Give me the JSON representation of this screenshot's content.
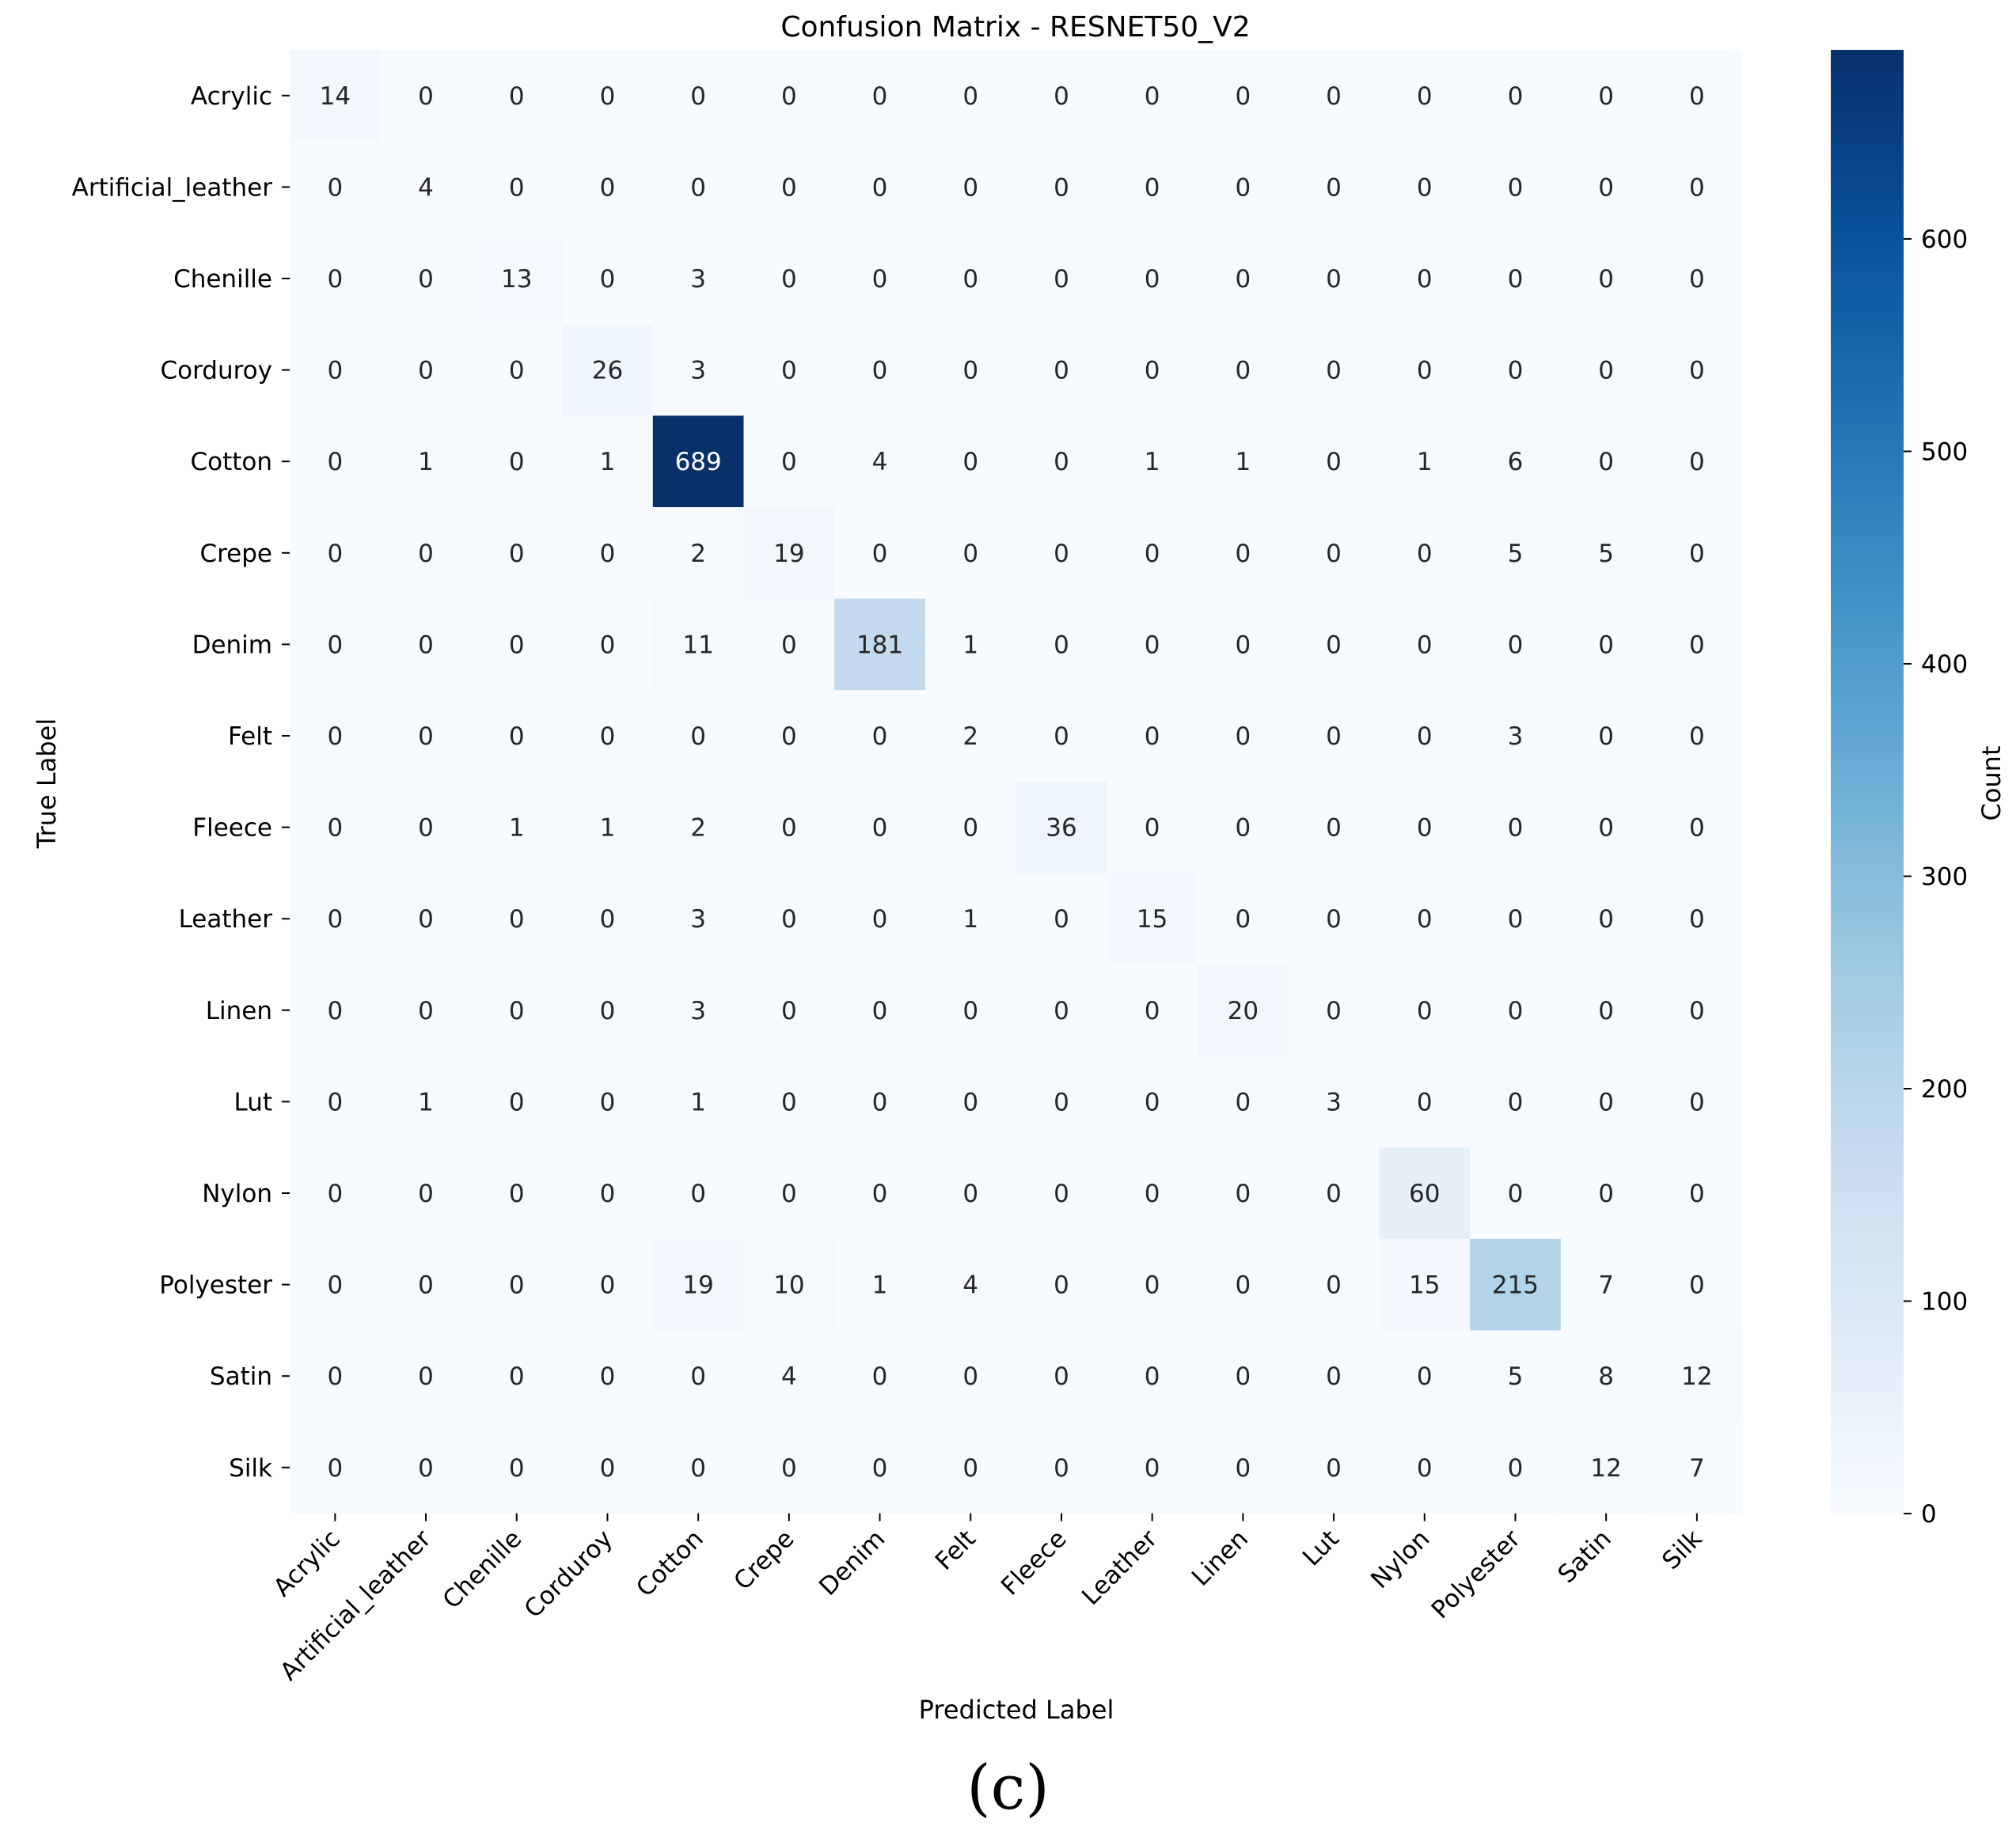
{
  "chart_data": {
    "type": "heatmap",
    "title": "Confusion Matrix - RESNET50_V2",
    "xlabel": "Predicted Label",
    "ylabel": "True Label",
    "colorbar_label": "Count",
    "colormap": "Blues",
    "colormap_colors": [
      "#f7fbff",
      "#deebf7",
      "#c6dbef",
      "#9ecae1",
      "#6baed6",
      "#4292c6",
      "#2171b5",
      "#08519c",
      "#08306b"
    ],
    "colorbar_range": [
      0,
      689
    ],
    "colorbar_ticks": [
      0,
      100,
      200,
      300,
      400,
      500,
      600
    ],
    "row_labels": [
      "Acrylic",
      "Artificial_leather",
      "Chenille",
      "Corduroy",
      "Cotton",
      "Crepe",
      "Denim",
      "Felt",
      "Fleece",
      "Leather",
      "Linen",
      "Lut",
      "Nylon",
      "Polyester",
      "Satin",
      "Silk"
    ],
    "col_labels": [
      "Acrylic",
      "Artificial_leather",
      "Chenille",
      "Corduroy",
      "Cotton",
      "Crepe",
      "Denim",
      "Felt",
      "Fleece",
      "Leather",
      "Linen",
      "Lut",
      "Nylon",
      "Polyester",
      "Satin",
      "Silk"
    ],
    "values": [
      [
        14,
        0,
        0,
        0,
        0,
        0,
        0,
        0,
        0,
        0,
        0,
        0,
        0,
        0,
        0,
        0
      ],
      [
        0,
        4,
        0,
        0,
        0,
        0,
        0,
        0,
        0,
        0,
        0,
        0,
        0,
        0,
        0,
        0
      ],
      [
        0,
        0,
        13,
        0,
        3,
        0,
        0,
        0,
        0,
        0,
        0,
        0,
        0,
        0,
        0,
        0
      ],
      [
        0,
        0,
        0,
        26,
        3,
        0,
        0,
        0,
        0,
        0,
        0,
        0,
        0,
        0,
        0,
        0
      ],
      [
        0,
        1,
        0,
        1,
        689,
        0,
        4,
        0,
        0,
        1,
        1,
        0,
        1,
        6,
        0,
        0
      ],
      [
        0,
        0,
        0,
        0,
        2,
        19,
        0,
        0,
        0,
        0,
        0,
        0,
        0,
        5,
        5,
        0
      ],
      [
        0,
        0,
        0,
        0,
        11,
        0,
        181,
        1,
        0,
        0,
        0,
        0,
        0,
        0,
        0,
        0
      ],
      [
        0,
        0,
        0,
        0,
        0,
        0,
        0,
        2,
        0,
        0,
        0,
        0,
        0,
        3,
        0,
        0
      ],
      [
        0,
        0,
        1,
        1,
        2,
        0,
        0,
        0,
        36,
        0,
        0,
        0,
        0,
        0,
        0,
        0
      ],
      [
        0,
        0,
        0,
        0,
        3,
        0,
        0,
        1,
        0,
        15,
        0,
        0,
        0,
        0,
        0,
        0
      ],
      [
        0,
        0,
        0,
        0,
        3,
        0,
        0,
        0,
        0,
        0,
        20,
        0,
        0,
        0,
        0,
        0
      ],
      [
        0,
        1,
        0,
        0,
        1,
        0,
        0,
        0,
        0,
        0,
        0,
        3,
        0,
        0,
        0,
        0
      ],
      [
        0,
        0,
        0,
        0,
        0,
        0,
        0,
        0,
        0,
        0,
        0,
        0,
        60,
        0,
        0,
        0
      ],
      [
        0,
        0,
        0,
        0,
        19,
        10,
        1,
        4,
        0,
        0,
        0,
        0,
        15,
        215,
        7,
        0
      ],
      [
        0,
        0,
        0,
        0,
        0,
        4,
        0,
        0,
        0,
        0,
        0,
        0,
        0,
        5,
        8,
        12
      ],
      [
        0,
        0,
        0,
        0,
        0,
        0,
        0,
        0,
        0,
        0,
        0,
        0,
        0,
        0,
        12,
        7
      ]
    ]
  },
  "caption": "(c)"
}
